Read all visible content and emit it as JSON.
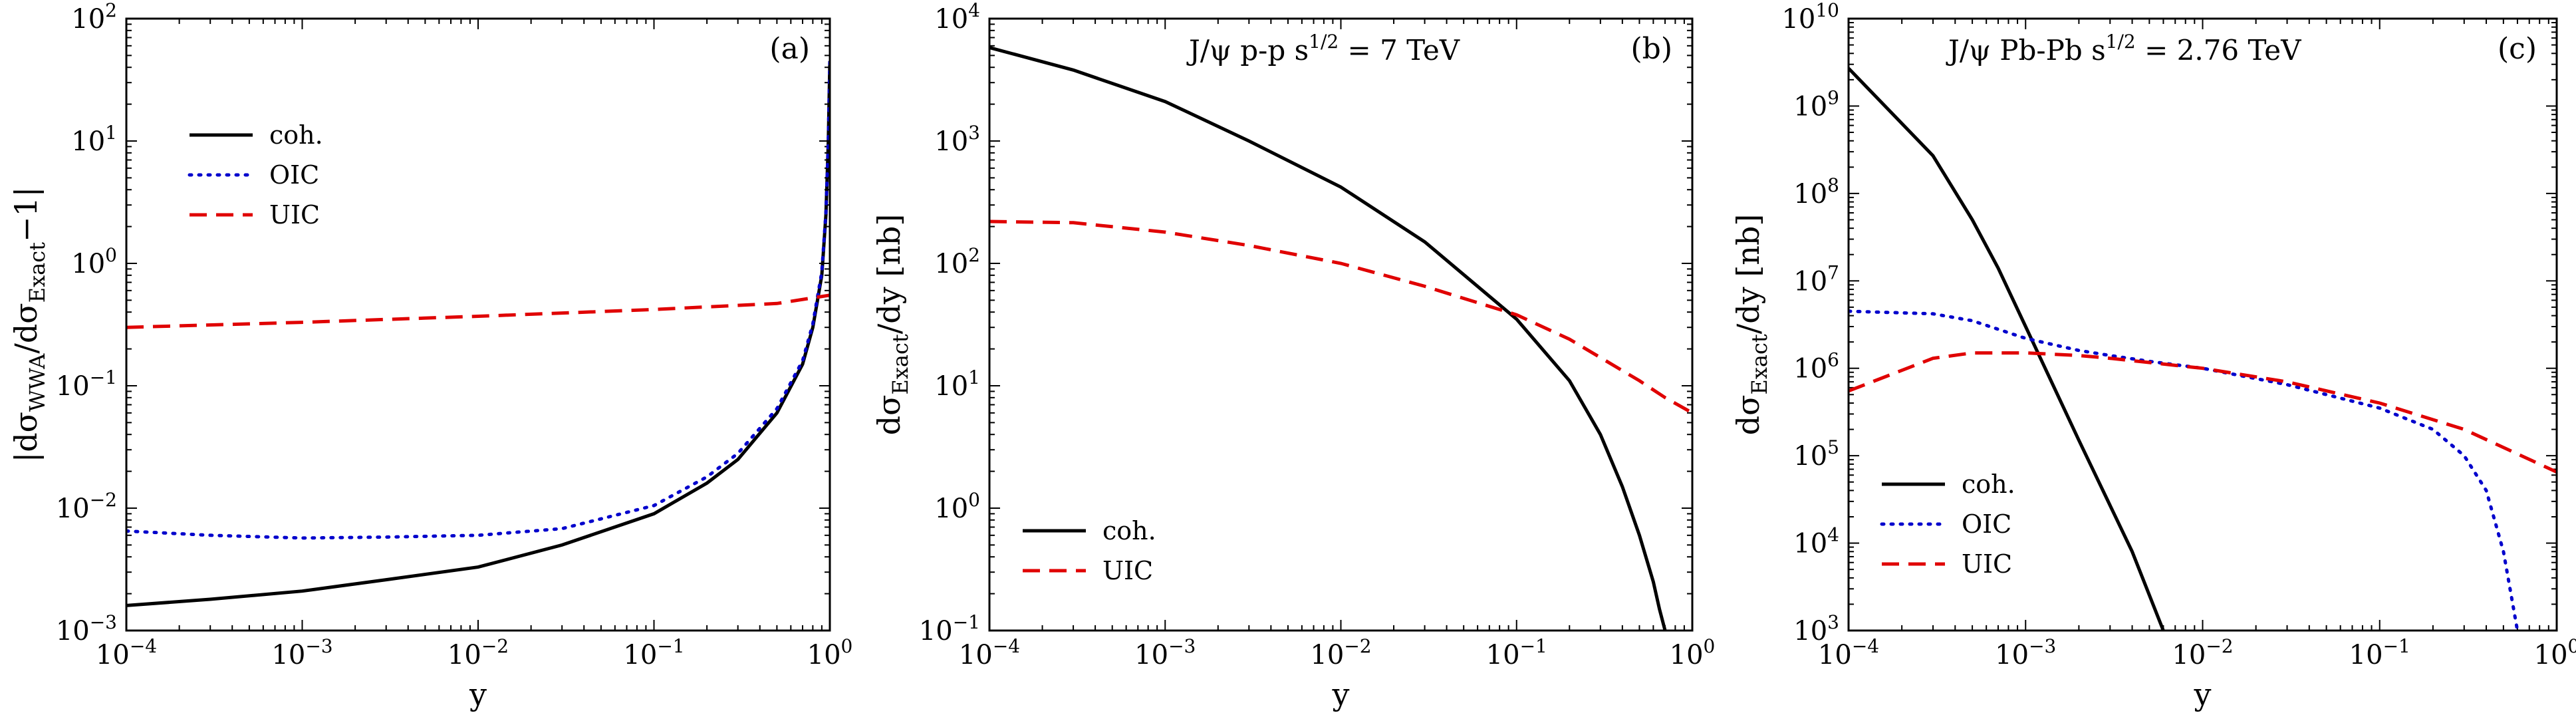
{
  "colors": {
    "coh": "#000000",
    "OIC": "#0000cc",
    "UIC": "#e00000"
  },
  "chart_data": [
    {
      "type": "line",
      "panel_label": "(a)",
      "xlabel": "y",
      "ylabel": {
        "text": "|dσ",
        "sub1": "WWA",
        "mid": "/dσ",
        "sub2": "Exact",
        "end": "−1|"
      },
      "xscale": "log",
      "yscale": "log",
      "xlim": [
        0.0001,
        1
      ],
      "ylim": [
        0.001,
        100
      ],
      "xticks": [
        "10^-4",
        "10^-3",
        "10^-2",
        "10^-1",
        "10^0"
      ],
      "yticks": [
        "10^-3",
        "10^-2",
        "10^-1",
        "10^0",
        "10^1",
        "10^2"
      ],
      "legend_position": "upper-left",
      "series": [
        {
          "name": "coh.",
          "style": "solid",
          "color": "#000000",
          "x": [
            0.0001,
            0.0003,
            0.001,
            0.003,
            0.01,
            0.03,
            0.1,
            0.2,
            0.3,
            0.5,
            0.7,
            0.8,
            0.9,
            0.95,
            0.98,
            1.0
          ],
          "y": [
            0.0016,
            0.0018,
            0.0021,
            0.0026,
            0.0033,
            0.005,
            0.009,
            0.016,
            0.025,
            0.06,
            0.15,
            0.3,
            0.8,
            2.5,
            10,
            45
          ]
        },
        {
          "name": "OIC",
          "style": "dotted",
          "color": "#0000cc",
          "x": [
            0.0001,
            0.0003,
            0.001,
            0.003,
            0.01,
            0.03,
            0.1,
            0.2,
            0.3,
            0.5,
            0.7,
            0.8,
            0.9,
            0.95,
            0.98,
            1.0
          ],
          "y": [
            0.0065,
            0.006,
            0.0057,
            0.0058,
            0.006,
            0.0068,
            0.0105,
            0.018,
            0.028,
            0.065,
            0.16,
            0.32,
            0.85,
            2.6,
            10,
            45
          ]
        },
        {
          "name": "UIC",
          "style": "dashed",
          "color": "#e00000",
          "x": [
            0.0001,
            0.001,
            0.01,
            0.1,
            0.5,
            1.0
          ],
          "y": [
            0.3,
            0.33,
            0.37,
            0.42,
            0.47,
            0.55
          ]
        }
      ]
    },
    {
      "type": "line",
      "panel_label": "(b)",
      "annotation": {
        "prefix": "J/ψ p-p s",
        "sup": "1/2",
        "suffix": " = 7 TeV"
      },
      "xlabel": "y",
      "ylabel": {
        "text": "dσ",
        "sub": "Exact",
        "end": "/dy [nb]"
      },
      "xscale": "log",
      "yscale": "log",
      "xlim": [
        0.0001,
        1
      ],
      "ylim": [
        0.1,
        10000
      ],
      "xticks": [
        "10^-4",
        "10^-3",
        "10^-2",
        "10^-1",
        "10^0"
      ],
      "yticks": [
        "10^-1",
        "10^0",
        "10^1",
        "10^2",
        "10^3",
        "10^4"
      ],
      "legend_position": "lower-left",
      "series": [
        {
          "name": "coh.",
          "style": "solid",
          "color": "#000000",
          "x": [
            0.0001,
            0.0003,
            0.001,
            0.003,
            0.01,
            0.03,
            0.1,
            0.2,
            0.3,
            0.4,
            0.5,
            0.6,
            0.65,
            0.7
          ],
          "y": [
            5800,
            3800,
            2100,
            1000,
            420,
            150,
            35,
            11,
            4,
            1.5,
            0.6,
            0.25,
            0.15,
            0.1
          ]
        },
        {
          "name": "UIC",
          "style": "dashed",
          "color": "#e00000",
          "x": [
            0.0001,
            0.0003,
            0.001,
            0.003,
            0.01,
            0.03,
            0.1,
            0.2,
            0.3,
            0.5,
            0.7,
            1.0
          ],
          "y": [
            220,
            215,
            180,
            140,
            100,
            65,
            38,
            24,
            17,
            11,
            8,
            6
          ]
        }
      ]
    },
    {
      "type": "line",
      "panel_label": "(c)",
      "annotation": {
        "prefix": "J/ψ Pb-Pb s",
        "sup": "1/2",
        "suffix": " = 2.76 TeV"
      },
      "xlabel": "y",
      "ylabel": {
        "text": "dσ",
        "sub": "Exact",
        "end": "/dy [nb]"
      },
      "xscale": "log",
      "yscale": "log",
      "xlim": [
        0.0001,
        1
      ],
      "ylim": [
        1000,
        10000000000
      ],
      "xticks": [
        "10^-4",
        "10^-3",
        "10^-2",
        "10^-1",
        "10^0"
      ],
      "yticks": [
        "10^3",
        "10^4",
        "10^5",
        "10^6",
        "10^7",
        "10^8",
        "10^9",
        "10^10"
      ],
      "legend_position": "lower-left",
      "series": [
        {
          "name": "coh.",
          "style": "solid",
          "color": "#000000",
          "x": [
            0.0001,
            0.0003,
            0.0005,
            0.0007,
            0.001,
            0.002,
            0.004,
            0.006
          ],
          "y": [
            2700000000,
            270000000,
            50000000,
            14000000,
            3000000,
            150000,
            8000,
            1000
          ]
        },
        {
          "name": "OIC",
          "style": "dotted",
          "color": "#0000cc",
          "x": [
            0.0001,
            0.0003,
            0.0005,
            0.001,
            0.002,
            0.003,
            0.005,
            0.01,
            0.03,
            0.1,
            0.2,
            0.3,
            0.4,
            0.5,
            0.6
          ],
          "y": [
            4500000,
            4200000,
            3500000,
            2200000,
            1600000,
            1400000,
            1200000,
            1000000,
            650000,
            350000,
            200000,
            100000,
            40000,
            8000,
            1000
          ]
        },
        {
          "name": "UIC",
          "style": "dashed",
          "color": "#e00000",
          "x": [
            0.0001,
            0.0003,
            0.0005,
            0.001,
            0.002,
            0.003,
            0.01,
            0.03,
            0.1,
            0.3,
            1.0
          ],
          "y": [
            550000,
            1300000,
            1500000,
            1500000,
            1400000,
            1300000,
            1000000,
            700000,
            400000,
            200000,
            65000
          ]
        }
      ]
    }
  ]
}
